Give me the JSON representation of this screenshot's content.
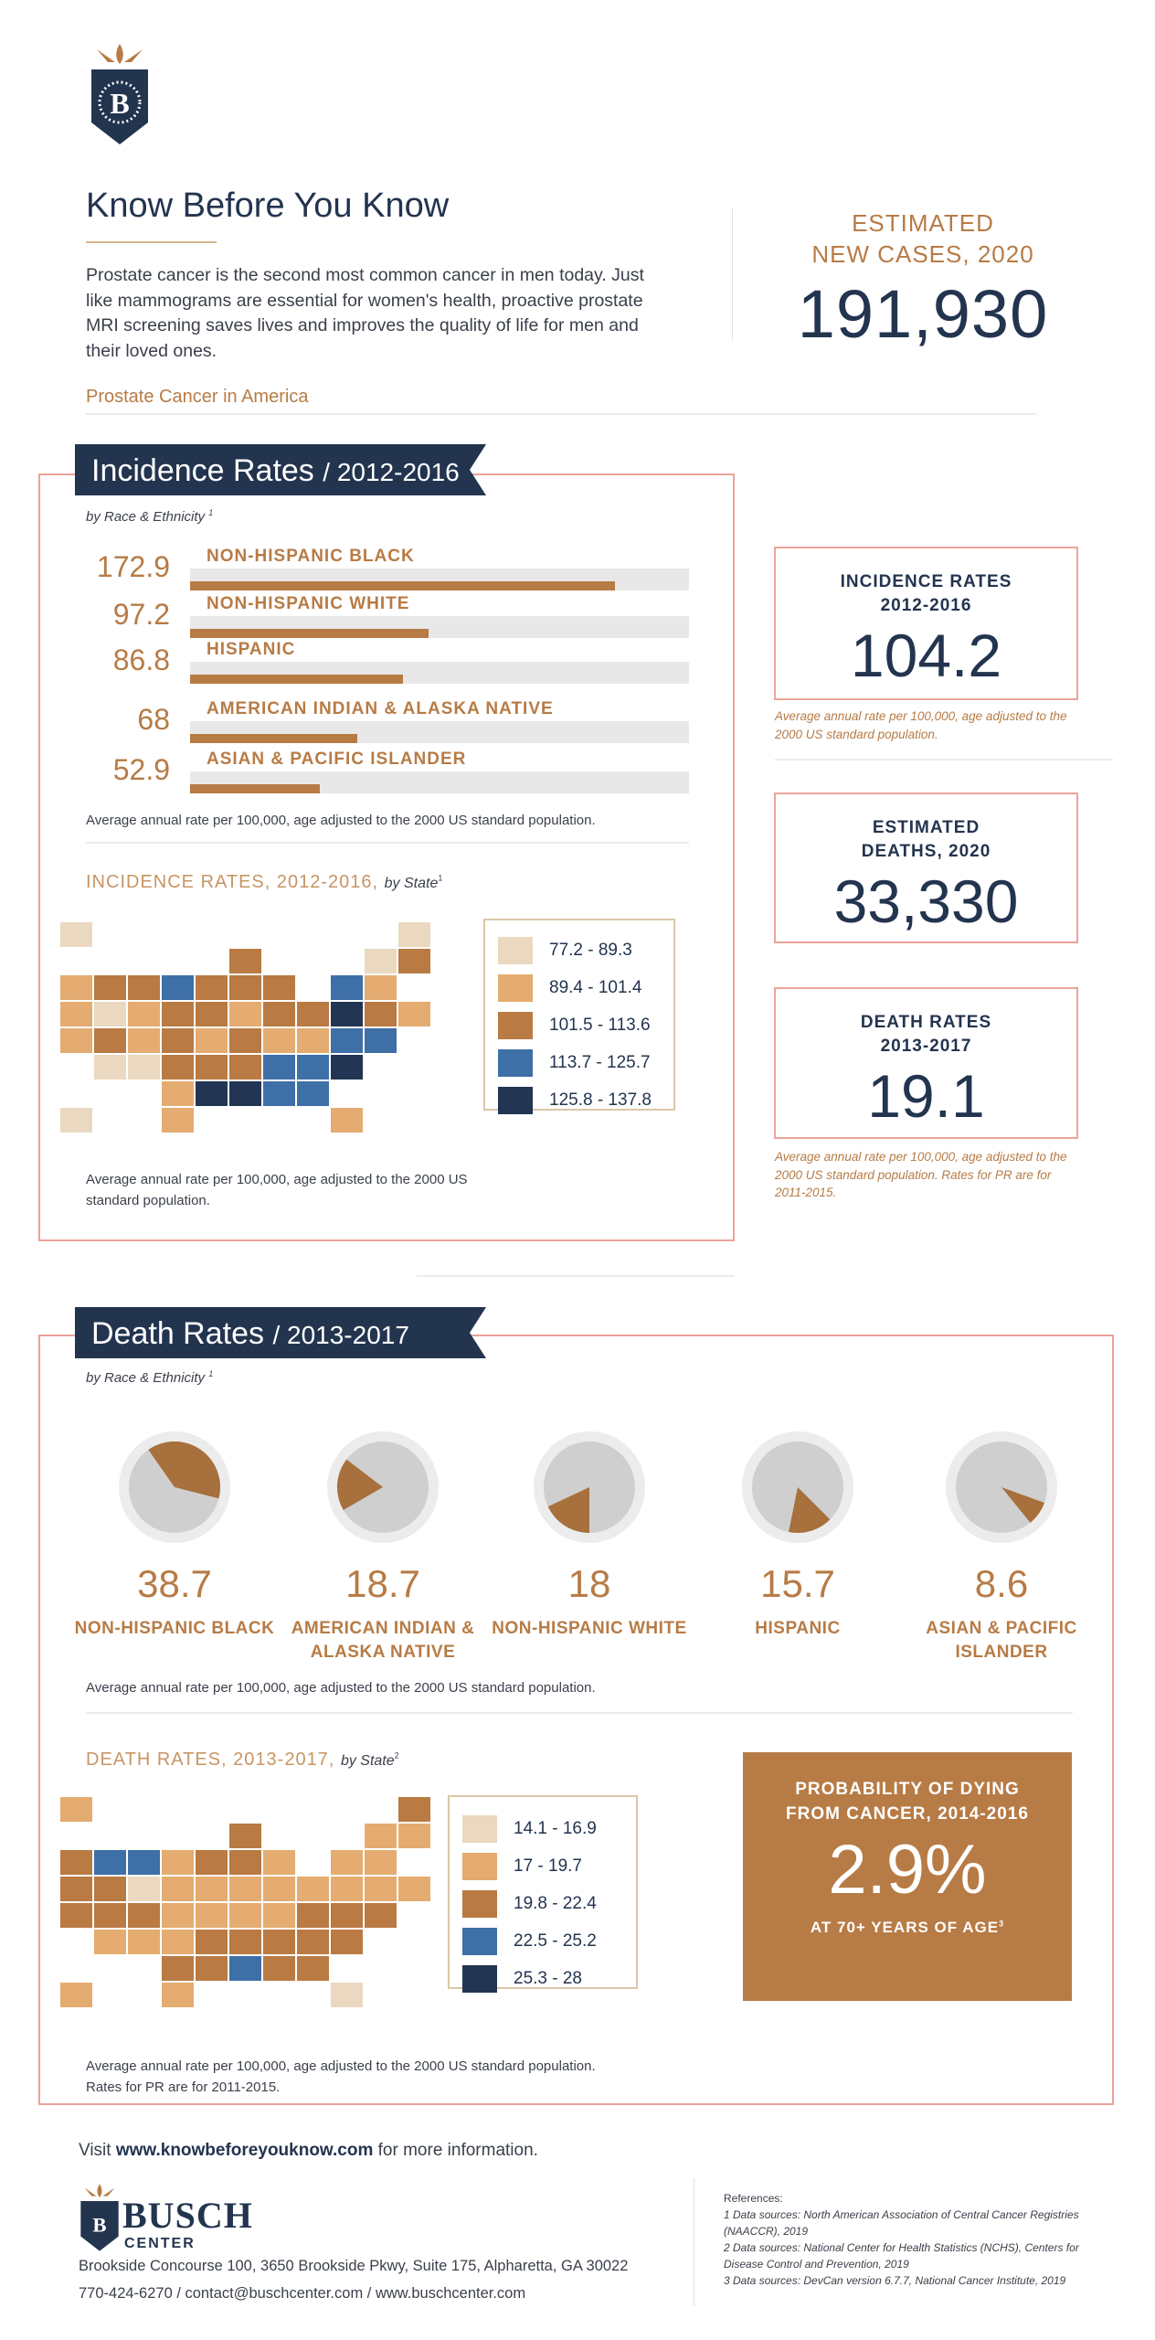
{
  "header": {
    "title": "Know Before You Know",
    "intro": "Prostate cancer is the second most common cancer in men today. Just like mammograms are essential for women's health, proactive prostate MRI screening saves lives and improves the quality of life for men and their loved ones.",
    "section_label": "Prostate Cancer in America",
    "new_cases_label_1": "ESTIMATED",
    "new_cases_label_2": "NEW CASES, 2020",
    "new_cases_value": "191,930"
  },
  "incidence": {
    "banner_title": "Incidence Rates",
    "banner_years": "/ 2012-2016",
    "subtitle": "by Race & Ethnicity",
    "subtitle_ref": "1",
    "note": "Average annual rate per 100,000, age adjusted to the 2000 US standard population.",
    "map_title": "INCIDENCE RATES, 2012-2016,",
    "map_title_suffix": "by State",
    "map_ref": "1",
    "map_note": "Average annual rate per 100,000, age adjusted to the 2000 US standard population."
  },
  "side_stats": {
    "incidence": {
      "label_1": "INCIDENCE RATES",
      "label_2": "2012-2016",
      "value": "104.2",
      "note": "Average annual rate per 100,000, age adjusted to the 2000 US standard population."
    },
    "deaths": {
      "label_1": "ESTIMATED",
      "label_2": "DEATHS, 2020",
      "value": "33,330"
    },
    "death_rates": {
      "label_1": "DEATH RATES",
      "label_2": "2013-2017",
      "value": "19.1",
      "note": "Average annual rate per 100,000, age adjusted to the 2000 US standard population. Rates for PR are for 2011-2015."
    }
  },
  "death": {
    "banner_title": "Death Rates",
    "banner_years": "/ 2013-2017",
    "subtitle": "by Race & Ethnicity",
    "subtitle_ref": "1",
    "note": "Average annual rate per 100,000, age adjusted to the 2000 US standard population.",
    "map_title": "DEATH RATES, 2013-2017,",
    "map_title_suffix": "by State",
    "map_ref": "2",
    "map_note": "Average annual rate per 100,000, age adjusted to the 2000 US standard population. Rates for PR are for 2011-2015.",
    "probability": {
      "label_1": "PROBABILITY OF DYING",
      "label_2": "FROM CANCER, 2014-2016",
      "value": "2.9%",
      "footer": "AT 70+ YEARS OF AGE",
      "ref": "3"
    }
  },
  "footer": {
    "visit_prefix": "Visit",
    "visit_url": "www.knowbeforeyouknow.com",
    "visit_suffix": "for more information.",
    "brand_name": "BUSCH",
    "brand_sub": "CENTER",
    "address": "Brookside Concourse 100, 3650 Brookside Pkwy, Suite 175, Alpharetta, GA 30022",
    "contact": "770-424-6270 / contact@buschcenter.com / www.buschcenter.com",
    "references_title": "References:",
    "references": [
      "1 Data sources: North American Association of Central Cancer Registries (NAACCR), 2019",
      "2 Data sources: National Center for Health Statistics (NCHS), Centers for Disease Control and Prevention, 2019",
      "3 Data sources: DevCan version 6.7.7, National Cancer Institute, 2019"
    ]
  },
  "colors": {
    "navy": "#23344f",
    "accent": "#b77b45",
    "border": "#eca39b",
    "track": "#e8e8e8",
    "bins": [
      "#ead9c0",
      "#e4ac70",
      "#b97a43",
      "#3f6fa7",
      "#223553"
    ]
  },
  "chart_data": [
    {
      "type": "bar",
      "orientation": "horizontal",
      "categories": [
        "NON-HISPANIC BLACK",
        "NON-HISPANIC WHITE",
        "HISPANIC",
        "AMERICAN INDIAN & ALASKA NATIVE",
        "ASIAN & PACIFIC ISLANDER"
      ],
      "values": [
        172.9,
        97.2,
        86.8,
        68,
        52.9
      ],
      "value_labels": [
        "172.9",
        "97.2",
        "86.8",
        "68",
        "52.9"
      ],
      "xlim": [
        0,
        203
      ]
    },
    {
      "type": "choropleth",
      "legend": [
        "77.2 - 89.3",
        "89.4 - 101.4",
        "101.5 - 113.6",
        "113.7 - 125.7",
        "125.8 - 137.8"
      ],
      "states": {
        "NV": 0,
        "AZ": 0,
        "NM": 0,
        "ME": 0,
        "VT": 0,
        "AK": 0,
        "HI": 0,
        "WA": 1,
        "OR": 1,
        "CA": 1,
        "WY": 1,
        "CO": 1,
        "TX": 1,
        "OK": 1,
        "MO": 1,
        "IN": 1,
        "WV": 1,
        "VA": 1,
        "FL": 1,
        "MA": 1,
        "RI": 1,
        "ID": 2,
        "MT": 2,
        "UT": 2,
        "SD": 2,
        "NE": 2,
        "KS": 2,
        "MN": 2,
        "IA": 2,
        "WI": 2,
        "IL": 2,
        "MI": 2,
        "OH": 2,
        "KY": 2,
        "TN": 2,
        "AR": 2,
        "PA": 2,
        "NH": 2,
        "CT": 2,
        "ND": 3,
        "NY": 3,
        "NC": 3,
        "SC": 3,
        "GA": 3,
        "AL": 3,
        "MD": 3,
        "DE": 3,
        "LA": 4,
        "MS": 4,
        "NJ": 4,
        "DC": 4
      }
    },
    {
      "type": "pie",
      "categories": [
        "NON-HISPANIC BLACK",
        "AMERICAN INDIAN & ALASKA NATIVE",
        "NON-HISPANIC WHITE",
        "HISPANIC",
        "ASIAN & PACIFIC ISLANDER"
      ],
      "values": [
        38.7,
        18.7,
        18,
        15.7,
        8.6
      ],
      "value_labels": [
        "38.7",
        "18.7",
        "18",
        "15.7",
        "8.6"
      ],
      "scale_max": 100
    },
    {
      "type": "choropleth",
      "legend": [
        "14.1 - 16.9",
        "17 - 19.7",
        "19.8 - 22.4",
        "22.5 - 25.2",
        "25.3 - 28"
      ],
      "states": {
        "WY": 0,
        "FL": 0,
        "AZ": 1,
        "NM": 1,
        "TX": 1,
        "ND": 1,
        "SD": 1,
        "NE": 1,
        "KS": 1,
        "IA": 1,
        "MO": 1,
        "MI": 1,
        "IN": 1,
        "OH": 1,
        "NY": 1,
        "PA": 1,
        "VT": 1,
        "NH": 1,
        "MA": 1,
        "CT": 1,
        "RI": 1,
        "NJ": 1,
        "WV": 1,
        "AK": 1,
        "HI": 1,
        "KY": 1,
        "WA": 2,
        "OR": 2,
        "CA": 2,
        "NV": 2,
        "UT": 2,
        "CO": 2,
        "MN": 2,
        "WI": 2,
        "IL": 2,
        "OK": 2,
        "LA": 2,
        "AL": 2,
        "GA": 2,
        "SC": 2,
        "NC": 2,
        "VA": 2,
        "TN": 2,
        "AR": 2,
        "ME": 2,
        "MD": 2,
        "DE": 2,
        "DC": 2,
        "MT": 3,
        "ID": 3,
        "MS": 3
      }
    }
  ]
}
